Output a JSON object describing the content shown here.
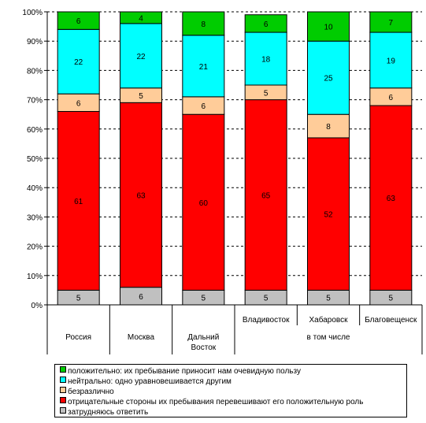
{
  "chart_data": {
    "type": "bar",
    "stacked": true,
    "percent": true,
    "categories": [
      "Россия",
      "Москва",
      "Дальний Восток",
      "Владивосток",
      "Хабаровск",
      "Благовещенск"
    ],
    "category_lines": [
      [
        "Россия"
      ],
      [
        "Москва"
      ],
      [
        "Дальний",
        "Восток"
      ],
      [
        "Владивосток"
      ],
      [
        "Хабаровск"
      ],
      [
        "Благовещенск"
      ]
    ],
    "group_label": "в том числе",
    "series": [
      {
        "name": "затрудняюсь ответить",
        "color": "#c0c0c0",
        "values": [
          5,
          6,
          5,
          5,
          5,
          5
        ]
      },
      {
        "name": "отрицательные стороны их пребывания перевешивают его положительную роль",
        "color": "#ff0000",
        "values": [
          61,
          63,
          60,
          65,
          52,
          63
        ]
      },
      {
        "name": "безразлично",
        "color": "#ffcc99",
        "values": [
          6,
          5,
          6,
          5,
          8,
          6
        ]
      },
      {
        "name": "нейтрально: одно уравновешивается другим",
        "color": "#00ffff",
        "values": [
          22,
          22,
          21,
          18,
          25,
          19
        ]
      },
      {
        "name": "положительно: их пребывание приносит нам очевидную пользу",
        "color": "#00cc00",
        "values": [
          6,
          4,
          8,
          6,
          10,
          7
        ]
      }
    ],
    "yticks": [
      "0%",
      "10%",
      "20%",
      "30%",
      "40%",
      "50%",
      "60%",
      "70%",
      "80%",
      "90%",
      "100%"
    ],
    "ylim": [
      0,
      100
    ],
    "grid": true,
    "legend_position": "bottom"
  }
}
